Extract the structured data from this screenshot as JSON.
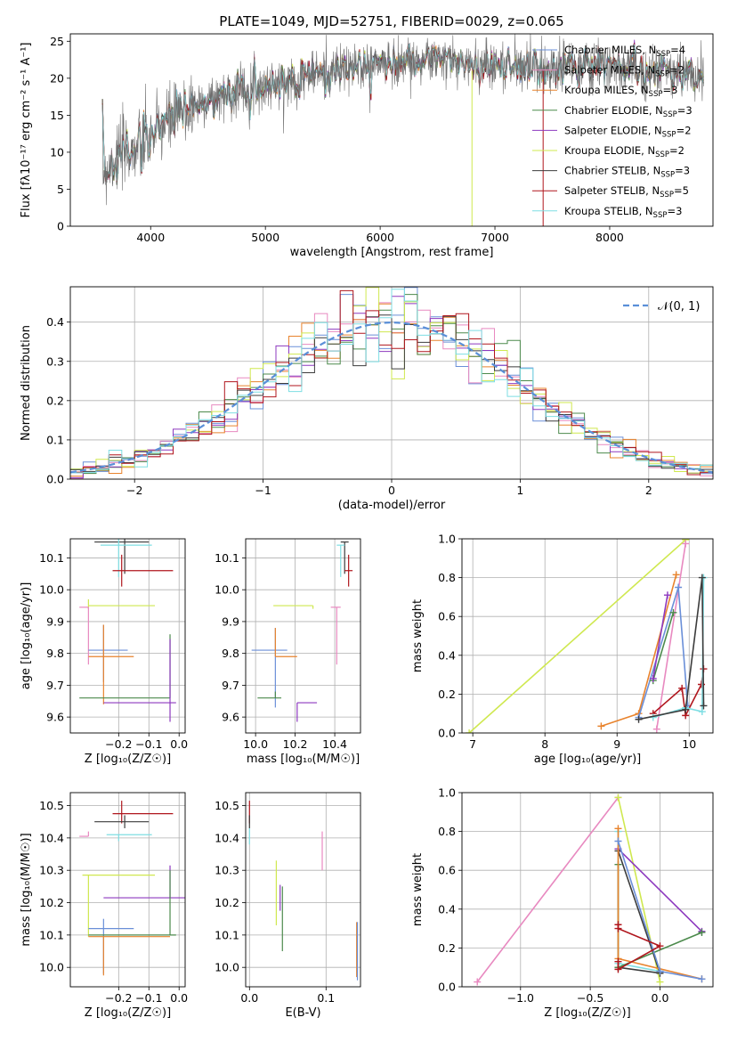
{
  "figure": {
    "title": "PLATE=1049, MJD=52751, FIBERID=0029, z=0.065"
  },
  "colors": {
    "chabrier_miles": "#6a8fd8",
    "salpeter_miles": "#e889c0",
    "kroupa_miles": "#e8832d",
    "chabrier_elodie": "#4c8a4c",
    "salpeter_elodie": "#8d39bf",
    "kroupa_elodie": "#cfe84f",
    "chabrier_stelib": "#3c3c3c",
    "salpeter_stelib": "#b0161d",
    "kroupa_stelib": "#7edee3",
    "normal": "#5a8fd8",
    "grid": "#b0b0b0"
  },
  "chart_data": [
    {
      "id": "spectrum",
      "type": "line",
      "xlabel": "wavelength [Angstrom, rest frame]",
      "ylabel": "Flux [fλ10⁻¹⁷ erg cm⁻² s⁻¹ A⁻¹]",
      "xlim": [
        3300,
        8900
      ],
      "ylim": [
        0,
        26
      ],
      "xticks": [
        4000,
        5000,
        6000,
        7000,
        8000
      ],
      "yticks": [
        0,
        5,
        10,
        15,
        20,
        25
      ],
      "grid": false,
      "legend_position": "top-right",
      "legend": [
        {
          "key": "chabrier_miles",
          "label": "Chabrier MILES, N",
          "sub": "SSP",
          "suffix": "=4"
        },
        {
          "key": "salpeter_miles",
          "label": "Salpeter MILES, N",
          "sub": "SSP",
          "suffix": "=2"
        },
        {
          "key": "kroupa_miles",
          "label": "Kroupa MILES, N",
          "sub": "SSP",
          "suffix": "=3"
        },
        {
          "key": "chabrier_elodie",
          "label": "Chabrier ELODIE, N",
          "sub": "SSP",
          "suffix": "=3"
        },
        {
          "key": "salpeter_elodie",
          "label": "Salpeter ELODIE, N",
          "sub": "SSP",
          "suffix": "=2"
        },
        {
          "key": "kroupa_elodie",
          "label": "Kroupa ELODIE, N",
          "sub": "SSP",
          "suffix": "=2"
        },
        {
          "key": "chabrier_stelib",
          "label": "Chabrier STELIB, N",
          "sub": "SSP",
          "suffix": "=3"
        },
        {
          "key": "salpeter_stelib",
          "label": "Salpeter STELIB, N",
          "sub": "SSP",
          "suffix": "=5"
        },
        {
          "key": "kroupa_stelib",
          "label": "Kroupa STELIB, N",
          "sub": "SSP",
          "suffix": "=3"
        }
      ],
      "observed_continuum": {
        "x": [
          3600,
          3700,
          3800,
          3900,
          4000,
          4100,
          4200,
          4400,
          4600,
          4800,
          5000,
          5200,
          5400,
          5600,
          5800,
          6000,
          6200,
          6400,
          6600,
          6800,
          7000,
          7200,
          7400,
          7600,
          7800,
          8000,
          8200,
          8400,
          8600,
          8800
        ],
        "y": [
          7.5,
          9.5,
          10.0,
          10.5,
          12.0,
          13.5,
          14.5,
          16.5,
          17.5,
          18.5,
          19.0,
          19.5,
          20.5,
          21.0,
          21.5,
          22.0,
          22.2,
          22.5,
          22.3,
          22.0,
          21.8,
          21.8,
          21.6,
          21.5,
          21.6,
          21.4,
          21.2,
          21.0,
          20.8,
          20.5
        ]
      },
      "observed_scatter": 1.6,
      "model_deviation": 0.6
    },
    {
      "id": "residuals",
      "type": "histogram",
      "xlabel": "(data-model)/error",
      "ylabel": "Normed distribution",
      "xlim": [
        -2.5,
        2.5
      ],
      "ylim": [
        0,
        0.49
      ],
      "xticks": [
        -2,
        -1,
        0,
        1,
        2
      ],
      "yticks": [
        0.0,
        0.1,
        0.2,
        0.3,
        0.4
      ],
      "grid": true,
      "legend_position": "top-right",
      "legend": [
        {
          "key": "normal",
          "label": "𝒩(0, 1)",
          "style": "dashed"
        }
      ],
      "bin_width": 0.1,
      "series": [
        "chabrier_miles",
        "salpeter_miles",
        "kroupa_miles",
        "chabrier_elodie",
        "salpeter_elodie",
        "kroupa_elodie",
        "chabrier_stelib",
        "salpeter_stelib",
        "kroupa_stelib"
      ],
      "normal_curve": {
        "mean": 0,
        "sigma": 1
      }
    },
    {
      "id": "age_vs_z",
      "type": "errorbar",
      "xlabel": "Z [log₁₀(Z/Z☉)]",
      "ylabel": "age  [log₁₀(age/yr)]",
      "xlim": [
        -0.36,
        0.02
      ],
      "ylim": [
        9.55,
        10.16
      ],
      "xticks": [
        -0.2,
        -0.1,
        0.0
      ],
      "yticks": [
        9.6,
        9.7,
        9.8,
        9.9,
        10.0,
        10.1
      ],
      "grid": true,
      "points": [
        {
          "key": "chabrier_stelib",
          "x": -0.18,
          "xerr": [
            0.1,
            0.08
          ],
          "y": 10.15,
          "yerr": [
            0.1,
            0.05
          ]
        },
        {
          "key": "kroupa_stelib",
          "x": -0.2,
          "xerr": [
            0.06,
            0.11
          ],
          "y": 10.14,
          "yerr": [
            0.1,
            0.05
          ]
        },
        {
          "key": "salpeter_stelib",
          "x": -0.19,
          "xerr": [
            0.03,
            0.17
          ],
          "y": 10.06,
          "yerr": [
            0.05,
            0.05
          ]
        },
        {
          "key": "kroupa_elodie",
          "x": -0.3,
          "xerr": [
            0.0,
            0.22
          ],
          "y": 9.95,
          "yerr": [
            0.01,
            0.02
          ]
        },
        {
          "key": "salpeter_miles",
          "x": -0.3,
          "xerr": [
            0.03,
            0.0
          ],
          "y": 9.945,
          "yerr": [
            0.18,
            0.0
          ]
        },
        {
          "key": "chabrier_miles",
          "x": -0.25,
          "xerr": [
            0.05,
            0.08
          ],
          "y": 9.81,
          "yerr": [
            0.1,
            0.08
          ]
        },
        {
          "key": "kroupa_miles",
          "x": -0.25,
          "xerr": [
            0.05,
            0.1
          ],
          "y": 9.79,
          "yerr": [
            0.15,
            0.1
          ]
        },
        {
          "key": "chabrier_elodie",
          "x": -0.03,
          "xerr": [
            0.3,
            0.0
          ],
          "y": 9.66,
          "yerr": [
            0.0,
            0.2
          ]
        },
        {
          "key": "salpeter_elodie",
          "x": -0.03,
          "xerr": [
            0.22,
            0.02
          ],
          "y": 9.645,
          "yerr": [
            0.06,
            0.2
          ]
        }
      ]
    },
    {
      "id": "age_vs_mass",
      "type": "errorbar",
      "xlabel": "mass [log₁₀(M/M☉)]",
      "ylabel": "",
      "xlim": [
        9.95,
        10.53
      ],
      "ylim": [
        9.55,
        10.16
      ],
      "xticks": [
        10.0,
        10.2,
        10.4
      ],
      "yticks": [
        9.6,
        9.7,
        9.8,
        9.9,
        10.0,
        10.1
      ],
      "grid": true,
      "points": [
        {
          "key": "chabrier_stelib",
          "x": 10.45,
          "xerr": [
            0.02,
            0.02
          ],
          "y": 10.15,
          "yerr": [
            0.1,
            0.0
          ]
        },
        {
          "key": "kroupa_stelib",
          "x": 10.43,
          "xerr": [
            0.02,
            0.02
          ],
          "y": 10.14,
          "yerr": [
            0.1,
            0.0
          ]
        },
        {
          "key": "salpeter_stelib",
          "x": 10.47,
          "xerr": [
            0.02,
            0.02
          ],
          "y": 10.06,
          "yerr": [
            0.05,
            0.05
          ]
        },
        {
          "key": "kroupa_elodie",
          "x": 10.29,
          "xerr": [
            0.2,
            0.0
          ],
          "y": 9.95,
          "yerr": [
            0.01,
            0.0
          ]
        },
        {
          "key": "salpeter_miles",
          "x": 10.41,
          "xerr": [
            0.03,
            0.02
          ],
          "y": 9.945,
          "yerr": [
            0.18,
            0.0
          ]
        },
        {
          "key": "chabrier_miles",
          "x": 10.1,
          "xerr": [
            0.12,
            0.06
          ],
          "y": 9.81,
          "yerr": [
            0.18,
            0.07
          ]
        },
        {
          "key": "kroupa_miles",
          "x": 10.1,
          "xerr": [
            0.0,
            0.11
          ],
          "y": 9.79,
          "yerr": [
            0.0,
            0.09
          ]
        },
        {
          "key": "chabrier_elodie",
          "x": 10.1,
          "xerr": [
            0.09,
            0.03
          ],
          "y": 9.66,
          "yerr": [
            0.0,
            0.02
          ]
        },
        {
          "key": "salpeter_elodie",
          "x": 10.21,
          "xerr": [
            0.0,
            0.1
          ],
          "y": 9.645,
          "yerr": [
            0.06,
            0.0
          ]
        }
      ]
    },
    {
      "id": "mass_weight_vs_age",
      "type": "line",
      "xlabel": "age  [log₁₀(age/yr)]",
      "ylabel": "mass weight",
      "xlim": [
        6.85,
        10.33
      ],
      "ylim": [
        0.0,
        1.0
      ],
      "xticks": [
        7,
        8,
        9,
        10
      ],
      "yticks": [
        0.0,
        0.2,
        0.4,
        0.6,
        0.8,
        1.0
      ],
      "grid": true,
      "series": [
        {
          "key": "kroupa_elodie",
          "x": [
            6.95,
            9.95
          ],
          "y": [
            0.0,
            0.995
          ]
        },
        {
          "key": "salpeter_miles",
          "x": [
            9.55,
            9.95
          ],
          "y": [
            0.02,
            0.975
          ]
        },
        {
          "key": "kroupa_miles",
          "x": [
            8.78,
            9.3,
            9.82
          ],
          "y": [
            0.035,
            0.1,
            0.815
          ]
        },
        {
          "key": "chabrier_miles",
          "x": [
            9.3,
            9.85,
            9.98
          ],
          "y": [
            0.08,
            0.75,
            0.14
          ]
        },
        {
          "key": "chabrier_elodie",
          "x": [
            9.5,
            9.78
          ],
          "y": [
            0.27,
            0.62
          ]
        },
        {
          "key": "salpeter_elodie",
          "x": [
            9.5,
            9.7
          ],
          "y": [
            0.28,
            0.71
          ]
        },
        {
          "key": "salpeter_stelib",
          "x": [
            9.5,
            9.9,
            9.95,
            10.17,
            10.2
          ],
          "y": [
            0.1,
            0.23,
            0.09,
            0.25,
            0.33
          ]
        },
        {
          "key": "kroupa_stelib",
          "x": [
            9.5,
            9.95,
            10.18,
            10.2
          ],
          "y": [
            0.08,
            0.13,
            0.11,
            0.8
          ]
        },
        {
          "key": "chabrier_stelib",
          "x": [
            9.3,
            9.95,
            10.18,
            10.2
          ],
          "y": [
            0.07,
            0.12,
            0.8,
            0.14
          ]
        }
      ]
    },
    {
      "id": "mass_vs_z",
      "type": "errorbar",
      "xlabel": "Z [log₁₀(Z/Z☉)]",
      "ylabel": "mass [log₁₀(M/M☉)]",
      "xlim": [
        -0.36,
        0.02
      ],
      "ylim": [
        9.94,
        10.54
      ],
      "xticks": [
        -0.2,
        -0.1,
        0.0
      ],
      "yticks": [
        10.0,
        10.1,
        10.2,
        10.3,
        10.4,
        10.5
      ],
      "grid": true,
      "points": [
        {
          "key": "salpeter_stelib",
          "x": -0.19,
          "xerr": [
            0.03,
            0.17
          ],
          "y": 10.475,
          "yerr": [
            0.03,
            0.04
          ]
        },
        {
          "key": "chabrier_stelib",
          "x": -0.18,
          "xerr": [
            0.1,
            0.08
          ],
          "y": 10.45,
          "yerr": [
            0.02,
            0.02
          ]
        },
        {
          "key": "kroupa_stelib",
          "x": -0.2,
          "xerr": [
            0.04,
            0.11
          ],
          "y": 10.41,
          "yerr": [
            0.02,
            0.0
          ]
        },
        {
          "key": "salpeter_miles",
          "x": -0.3,
          "xerr": [
            0.03,
            0.0
          ],
          "y": 10.405,
          "yerr": [
            0.0,
            0.015
          ]
        },
        {
          "key": "kroupa_elodie",
          "x": -0.3,
          "xerr": [
            0.02,
            0.22
          ],
          "y": 10.285,
          "yerr": [
            0.19,
            0.0
          ]
        },
        {
          "key": "salpeter_elodie",
          "x": -0.03,
          "xerr": [
            0.22,
            0.05
          ],
          "y": 10.215,
          "yerr": [
            0.0,
            0.1
          ]
        },
        {
          "key": "chabrier_miles",
          "x": -0.25,
          "xerr": [
            0.05,
            0.1
          ],
          "y": 10.12,
          "yerr": [
            0.14,
            0.03
          ]
        },
        {
          "key": "chabrier_elodie",
          "x": -0.03,
          "xerr": [
            0.27,
            0.02
          ],
          "y": 10.1,
          "yerr": [
            0.0,
            0.2
          ]
        },
        {
          "key": "kroupa_miles",
          "x": -0.25,
          "xerr": [
            0.05,
            0.22
          ],
          "y": 10.095,
          "yerr": [
            0.12,
            0.0
          ]
        }
      ]
    },
    {
      "id": "mass_vs_ebv",
      "type": "errorbar",
      "xlabel": "E(B-V)",
      "ylabel": "",
      "xlim": [
        -0.005,
        0.145
      ],
      "ylim": [
        9.94,
        10.54
      ],
      "xticks": [
        0.0,
        0.1
      ],
      "yticks": [
        10.0,
        10.1,
        10.2,
        10.3,
        10.4,
        10.5
      ],
      "grid": true,
      "points": [
        {
          "key": "salpeter_stelib",
          "x": 0.0,
          "xerr": [
            0.0,
            0.0
          ],
          "y": 10.475,
          "yerr": [
            0.03,
            0.04
          ]
        },
        {
          "key": "chabrier_stelib",
          "x": 0.0,
          "xerr": [
            0.0,
            0.0
          ],
          "y": 10.45,
          "yerr": [
            0.02,
            0.02
          ]
        },
        {
          "key": "kroupa_stelib",
          "x": 0.0,
          "xerr": [
            0.0,
            0.0
          ],
          "y": 10.41,
          "yerr": [
            0.03,
            0.02
          ]
        },
        {
          "key": "salpeter_miles",
          "x": 0.095,
          "xerr": [
            0.0,
            0.0
          ],
          "y": 10.36,
          "yerr": [
            0.06,
            0.06
          ]
        },
        {
          "key": "kroupa_elodie",
          "x": 0.035,
          "xerr": [
            0.0,
            0.0
          ],
          "y": 10.23,
          "yerr": [
            0.1,
            0.1
          ]
        },
        {
          "key": "salpeter_elodie",
          "x": 0.04,
          "xerr": [
            0.0,
            0.0
          ],
          "y": 10.215,
          "yerr": [
            0.04,
            0.04
          ]
        },
        {
          "key": "chabrier_elodie",
          "x": 0.043,
          "xerr": [
            0.0,
            0.0
          ],
          "y": 10.15,
          "yerr": [
            0.1,
            0.1
          ]
        },
        {
          "key": "kroupa_miles",
          "x": 0.14,
          "xerr": [
            0.0,
            0.0
          ],
          "y": 10.04,
          "yerr": [
            0.07,
            0.1
          ]
        },
        {
          "key": "chabrier_miles",
          "x": 0.141,
          "xerr": [
            0.0,
            0.0
          ],
          "y": 10.05,
          "yerr": [
            0.09,
            0.09
          ]
        }
      ]
    },
    {
      "id": "mass_weight_vs_z",
      "type": "line",
      "xlabel": "Z [log₁₀(Z/Z☉)]",
      "ylabel": "mass weight",
      "xlim": [
        -1.42,
        0.38
      ],
      "ylim": [
        0.0,
        1.0
      ],
      "xticks": [
        -1.0,
        -0.5,
        0.0
      ],
      "yticks": [
        0.0,
        0.2,
        0.4,
        0.6,
        0.8,
        1.0
      ],
      "grid": true,
      "series": [
        {
          "key": "salpeter_miles",
          "x": [
            -1.31,
            -0.3
          ],
          "y": [
            0.025,
            0.975
          ]
        },
        {
          "key": "kroupa_elodie",
          "x": [
            -0.3,
            0.0
          ],
          "y": [
            0.975,
            0.025
          ]
        },
        {
          "key": "salpeter_elodie",
          "x": [
            -0.3,
            0.3
          ],
          "y": [
            0.71,
            0.285
          ]
        },
        {
          "key": "kroupa_stelib",
          "x": [
            -0.3,
            -0.3,
            0.0
          ],
          "y": [
            0.8,
            0.12,
            0.08
          ]
        },
        {
          "key": "chabrier_stelib",
          "x": [
            -0.3,
            0.0,
            -0.3
          ],
          "y": [
            0.7,
            0.07,
            0.1
          ]
        },
        {
          "key": "chabrier_elodie",
          "x": [
            -0.3,
            -0.3,
            0.3
          ],
          "y": [
            0.63,
            0.1,
            0.28
          ]
        },
        {
          "key": "kroupa_miles",
          "x": [
            -0.3,
            -0.3,
            0.3
          ],
          "y": [
            0.815,
            0.145,
            0.04
          ]
        },
        {
          "key": "chabrier_miles",
          "x": [
            -0.3,
            0.0,
            0.3
          ],
          "y": [
            0.75,
            0.08,
            0.04
          ]
        },
        {
          "key": "salpeter_stelib",
          "x": [
            -0.3,
            -0.3,
            0.0,
            -0.3,
            -0.3
          ],
          "y": [
            0.32,
            0.3,
            0.21,
            0.09,
            0.13
          ]
        }
      ]
    }
  ]
}
